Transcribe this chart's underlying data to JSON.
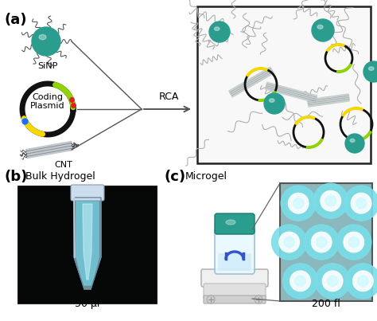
{
  "bg_color": "#ffffff",
  "panel_a_label": "(a)",
  "panel_b_label": "(b)",
  "panel_c_label": "(c)",
  "sinp_label": "SiNP",
  "cnt_label": "CNT",
  "plasmid_label1": "Coding",
  "plasmid_label2": "Plasmid",
  "rca_label": "RCA",
  "bulk_label": "Bulk Hydrogel",
  "vol_b_label": "50 μl",
  "microgel_label": "Microgel",
  "vol_c_label": "200 fl",
  "teal_color": "#2a9d8f",
  "sinp_color": "#2a9d8f",
  "plasmid_black": "#111111",
  "plasmid_green": "#8fd400",
  "plasmid_yellow": "#f5d800",
  "plasmid_blue": "#1a6fff",
  "plasmid_red": "#dd2222",
  "cnt_color": "#aaaaaa",
  "nanocomposite_bg": "#f8f8f8",
  "microgel_bg": "#8ab8bc",
  "microgel_dot_outer": "#7adde8",
  "microgel_dot_inner": "#ffffff",
  "arrow_color": "#555555",
  "tube_bg": "#070808",
  "tube_body": "#b0ccd0",
  "tube_glow": "#80d8e0",
  "vial_body": "#ddf5ff",
  "vial_cap": "#2a9d8f",
  "shaker_color": "#e8e8e8"
}
